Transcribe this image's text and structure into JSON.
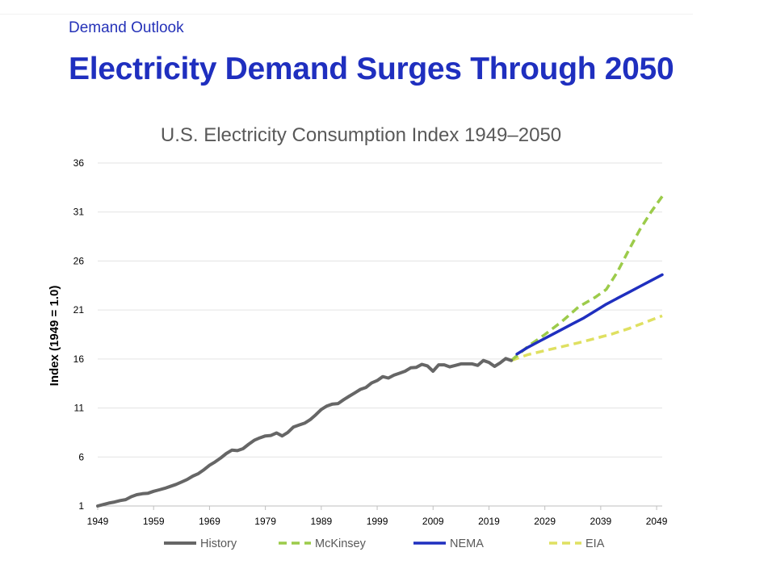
{
  "header": {
    "eyebrow": "Demand Outlook",
    "headline": "Electricity Demand Surges Through 2050"
  },
  "colors": {
    "headline": "#1f2fbf",
    "history": "#666666",
    "mckinsey": "#9ccb4a",
    "nema": "#1f2fbf",
    "eia": "#dfe061"
  },
  "chart_data": {
    "type": "line",
    "title": "U.S. Electricity Consumption Index 1949–2050",
    "xlabel": "",
    "ylabel": "Index (1949 = 1.0)",
    "xlim": [
      1949,
      2050
    ],
    "ylim": [
      1,
      36
    ],
    "yticks": [
      "1",
      "6",
      "11",
      "16",
      "21",
      "26",
      "31",
      "36"
    ],
    "xticks": [
      "1949",
      "1959",
      "1969",
      "1979",
      "1989",
      "1999",
      "2009",
      "2019",
      "2029",
      "2039",
      "2049"
    ],
    "grid": true,
    "legend_position": "bottom",
    "series": [
      {
        "name": "History",
        "style": "solid",
        "color": "#666666",
        "x": [
          1949,
          1950,
          1951,
          1952,
          1953,
          1954,
          1955,
          1956,
          1957,
          1958,
          1959,
          1960,
          1961,
          1962,
          1963,
          1964,
          1965,
          1966,
          1967,
          1968,
          1969,
          1970,
          1971,
          1972,
          1973,
          1974,
          1975,
          1976,
          1977,
          1978,
          1979,
          1980,
          1981,
          1982,
          1983,
          1984,
          1985,
          1986,
          1987,
          1988,
          1989,
          1990,
          1991,
          1992,
          1993,
          1994,
          1995,
          1996,
          1997,
          1998,
          1999,
          2000,
          2001,
          2002,
          2003,
          2004,
          2005,
          2006,
          2007,
          2008,
          2009,
          2010,
          2011,
          2012,
          2013,
          2014,
          2015,
          2016,
          2017,
          2018,
          2019,
          2020,
          2021,
          2022,
          2023
        ],
        "y": [
          1.0,
          1.15,
          1.3,
          1.4,
          1.55,
          1.65,
          1.95,
          2.15,
          2.25,
          2.3,
          2.5,
          2.65,
          2.8,
          3.0,
          3.2,
          3.45,
          3.7,
          4.05,
          4.3,
          4.7,
          5.15,
          5.5,
          5.9,
          6.35,
          6.7,
          6.65,
          6.85,
          7.3,
          7.7,
          7.95,
          8.15,
          8.2,
          8.45,
          8.15,
          8.5,
          9.05,
          9.25,
          9.45,
          9.8,
          10.3,
          10.85,
          11.2,
          11.4,
          11.45,
          11.85,
          12.2,
          12.55,
          12.9,
          13.1,
          13.55,
          13.8,
          14.2,
          14.05,
          14.35,
          14.55,
          14.75,
          15.1,
          15.15,
          15.45,
          15.3,
          14.75,
          15.4,
          15.4,
          15.2,
          15.35,
          15.5,
          15.5,
          15.5,
          15.35,
          15.85,
          15.65,
          15.25,
          15.6,
          16.05,
          15.85
        ]
      },
      {
        "name": "McKinsey",
        "style": "dashed",
        "color": "#9ccb4a",
        "x": [
          2023,
          2026,
          2029,
          2032,
          2035,
          2038,
          2040,
          2042,
          2044,
          2046,
          2048,
          2050
        ],
        "y": [
          15.85,
          17.3,
          18.5,
          19.8,
          21.3,
          22.3,
          23.1,
          24.9,
          27.1,
          29.2,
          31.0,
          32.6
        ]
      },
      {
        "name": "NEMA",
        "style": "solid",
        "color": "#1f2fbf",
        "x": [
          2024,
          2026,
          2028,
          2030,
          2032,
          2034,
          2036,
          2038,
          2040,
          2042,
          2044,
          2046,
          2048,
          2050
        ],
        "y": [
          16.5,
          17.2,
          17.8,
          18.4,
          19.0,
          19.6,
          20.2,
          20.9,
          21.6,
          22.2,
          22.8,
          23.4,
          24.0,
          24.6
        ]
      },
      {
        "name": "EIA",
        "style": "dashed",
        "color": "#dfe061",
        "x": [
          2023,
          2026,
          2029,
          2032,
          2035,
          2038,
          2041,
          2044,
          2047,
          2050
        ],
        "y": [
          15.85,
          16.45,
          16.85,
          17.25,
          17.65,
          18.1,
          18.55,
          19.1,
          19.75,
          20.4
        ]
      }
    ]
  }
}
